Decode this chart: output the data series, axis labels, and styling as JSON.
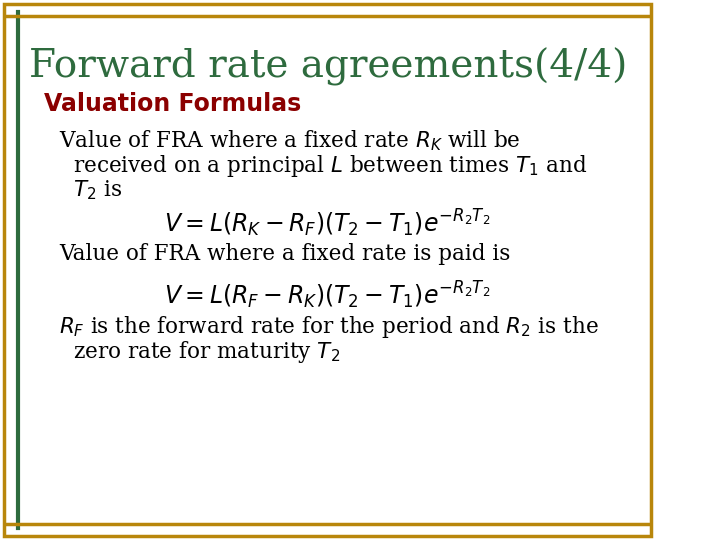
{
  "title": "Forward rate agreements(4/4)",
  "title_color": "#2E6B3E",
  "title_fontsize": 28,
  "subtitle": "Valuation Formulas",
  "subtitle_color": "#8B0000",
  "subtitle_fontsize": 17,
  "background_color": "#FFFFFF",
  "border_color_outer": "#B8860B",
  "border_color_inner": "#2E6B3E",
  "text_color": "#000000",
  "body_fontsize": 15.5,
  "formula1": "$V = L(R_K - R_F)(T_2 - T_1)e^{-R_2T_2}$",
  "formula2": "$V = L(R_F - R_K)(T_2 - T_1)e^{-R_2T_2}$",
  "formula_fontsize": 17,
  "para1_line1": "Value of FRA where a fixed rate $R_K$ will be",
  "para1_line2": "received on a principal $L$ between times $T_1$ and",
  "para1_line3": "$T_2$ is",
  "para2_line1": "Value of FRA where a fixed rate is paid is",
  "para3_line1": "$R_F$ is the forward rate for the period and $R_2$ is the",
  "para3_line2": "zero rate for maturity $T_2$"
}
